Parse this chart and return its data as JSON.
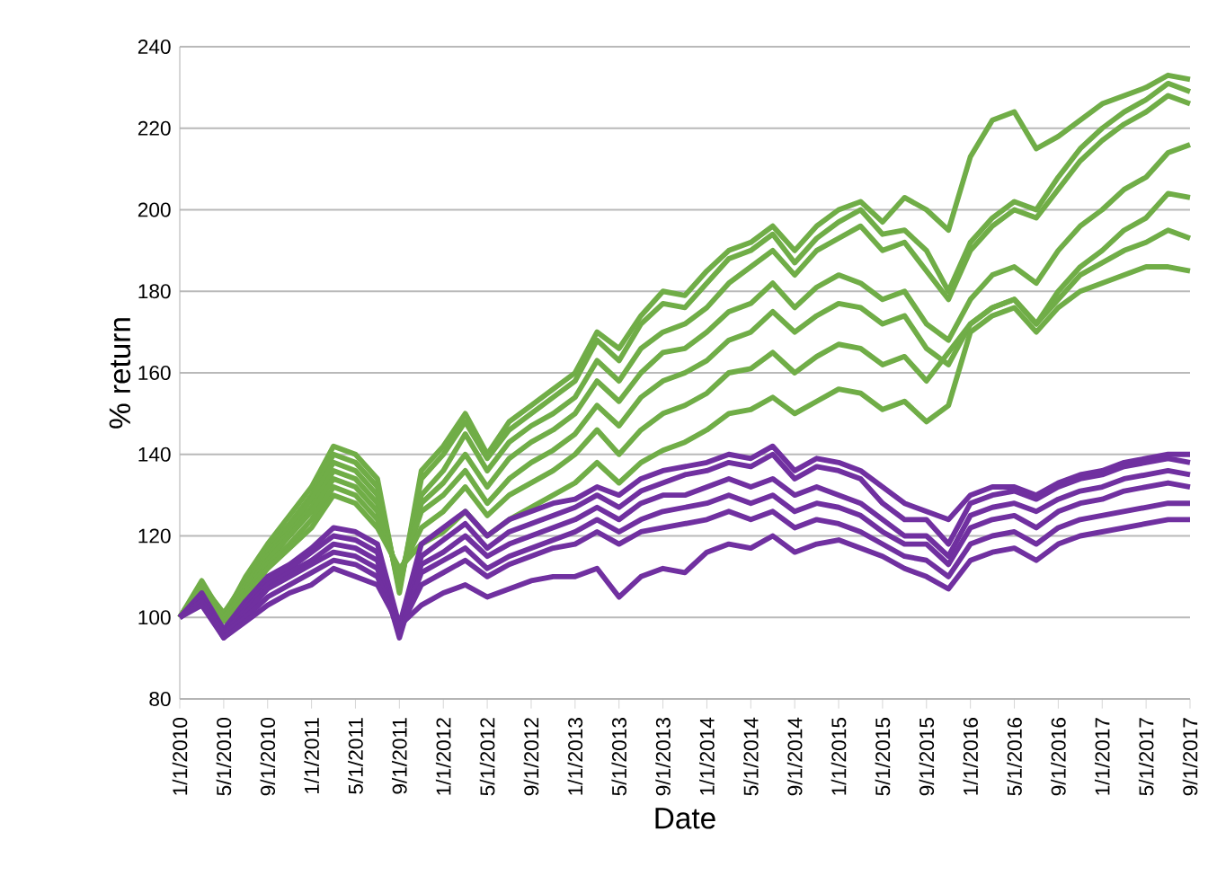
{
  "chart_data": {
    "type": "line",
    "xlabel": "Date",
    "ylabel": "% return",
    "x": [
      "2010-01",
      "2010-03",
      "2010-05",
      "2010-07",
      "2010-09",
      "2010-11",
      "2011-01",
      "2011-03",
      "2011-05",
      "2011-07",
      "2011-09",
      "2011-11",
      "2012-01",
      "2012-03",
      "2012-05",
      "2012-07",
      "2012-09",
      "2012-11",
      "2013-01",
      "2013-03",
      "2013-05",
      "2013-07",
      "2013-09",
      "2013-11",
      "2014-01",
      "2014-03",
      "2014-05",
      "2014-07",
      "2014-09",
      "2014-11",
      "2015-01",
      "2015-03",
      "2015-05",
      "2015-07",
      "2015-09",
      "2015-11",
      "2016-01",
      "2016-03",
      "2016-05",
      "2016-07",
      "2016-09",
      "2016-11",
      "2017-01",
      "2017-03",
      "2017-05",
      "2017-07",
      "2017-09"
    ],
    "xlim": [
      "2010-01",
      "2017-09"
    ],
    "xticks": [
      {
        "value": "2010-01",
        "label": "1/1/2010"
      },
      {
        "value": "2010-05",
        "label": "5/1/2010"
      },
      {
        "value": "2010-09",
        "label": "9/1/2010"
      },
      {
        "value": "2011-01",
        "label": "1/1/2011"
      },
      {
        "value": "2011-05",
        "label": "5/1/2011"
      },
      {
        "value": "2011-09",
        "label": "9/1/2011"
      },
      {
        "value": "2012-01",
        "label": "1/1/2012"
      },
      {
        "value": "2012-05",
        "label": "5/1/2012"
      },
      {
        "value": "2012-09",
        "label": "9/1/2012"
      },
      {
        "value": "2013-01",
        "label": "1/1/2013"
      },
      {
        "value": "2013-05",
        "label": "5/1/2013"
      },
      {
        "value": "2013-09",
        "label": "9/1/2013"
      },
      {
        "value": "2014-01",
        "label": "1/1/2014"
      },
      {
        "value": "2014-05",
        "label": "5/1/2014"
      },
      {
        "value": "2014-09",
        "label": "9/1/2014"
      },
      {
        "value": "2015-01",
        "label": "1/1/2015"
      },
      {
        "value": "2015-05",
        "label": "5/1/2015"
      },
      {
        "value": "2015-09",
        "label": "9/1/2015"
      },
      {
        "value": "2016-01",
        "label": "1/1/2016"
      },
      {
        "value": "2016-05",
        "label": "5/1/2016"
      },
      {
        "value": "2016-09",
        "label": "9/1/2016"
      },
      {
        "value": "2017-01",
        "label": "1/1/2017"
      },
      {
        "value": "2017-05",
        "label": "5/1/2017"
      },
      {
        "value": "2017-09",
        "label": "9/1/2017"
      }
    ],
    "ylim": [
      80,
      240
    ],
    "yticks": [
      80,
      100,
      120,
      140,
      160,
      180,
      200,
      220,
      240
    ],
    "grid": "y",
    "marker": "none",
    "series": [
      {
        "color": "#70ad47",
        "values": [
          100,
          109,
          100,
          110,
          118,
          125,
          132,
          142,
          140,
          134,
          106,
          136,
          142,
          150,
          140,
          148,
          152,
          156,
          160,
          170,
          166,
          174,
          180,
          179,
          185,
          190,
          192,
          196,
          190,
          196,
          200,
          202,
          197,
          203,
          200,
          195,
          213,
          222,
          224,
          215,
          218,
          222,
          226,
          228,
          230,
          233,
          232
        ]
      },
      {
        "color": "#70ad47",
        "values": [
          100,
          108,
          101,
          109,
          117,
          123,
          130,
          140,
          138,
          132,
          107,
          134,
          140,
          148,
          139,
          146,
          150,
          154,
          158,
          168,
          163,
          172,
          177,
          176,
          182,
          188,
          190,
          194,
          187,
          193,
          197,
          200,
          194,
          195,
          190,
          180,
          192,
          198,
          202,
          200,
          208,
          215,
          220,
          224,
          227,
          231,
          229
        ]
      },
      {
        "color": "#70ad47",
        "values": [
          100,
          108,
          100,
          108,
          116,
          122,
          129,
          138,
          136,
          130,
          108,
          130,
          136,
          145,
          136,
          143,
          147,
          150,
          154,
          163,
          158,
          166,
          170,
          172,
          176,
          182,
          186,
          190,
          184,
          190,
          193,
          196,
          190,
          192,
          185,
          178,
          190,
          196,
          200,
          198,
          205,
          212,
          217,
          221,
          224,
          228,
          226
        ]
      },
      {
        "color": "#70ad47",
        "values": [
          100,
          108,
          101,
          108,
          115,
          121,
          127,
          136,
          134,
          128,
          109,
          128,
          133,
          140,
          132,
          139,
          143,
          146,
          150,
          158,
          153,
          160,
          165,
          166,
          170,
          175,
          177,
          182,
          176,
          181,
          184,
          182,
          178,
          180,
          172,
          168,
          178,
          184,
          186,
          182,
          190,
          196,
          200,
          205,
          208,
          214,
          216
        ]
      },
      {
        "color": "#70ad47",
        "values": [
          100,
          107,
          100,
          107,
          114,
          120,
          126,
          134,
          132,
          126,
          110,
          126,
          130,
          136,
          128,
          134,
          138,
          141,
          145,
          152,
          147,
          154,
          158,
          160,
          163,
          168,
          170,
          175,
          170,
          174,
          177,
          176,
          172,
          174,
          166,
          162,
          172,
          176,
          178,
          172,
          180,
          186,
          190,
          195,
          198,
          204,
          203
        ]
      },
      {
        "color": "#70ad47",
        "values": [
          100,
          107,
          100,
          106,
          113,
          118,
          124,
          132,
          130,
          124,
          111,
          122,
          126,
          132,
          125,
          130,
          133,
          136,
          140,
          146,
          140,
          146,
          150,
          152,
          155,
          160,
          161,
          165,
          160,
          164,
          167,
          166,
          162,
          164,
          158,
          165,
          172,
          176,
          178,
          172,
          178,
          184,
          187,
          190,
          192,
          195,
          193
        ]
      },
      {
        "color": "#70ad47",
        "values": [
          100,
          106,
          99,
          105,
          112,
          117,
          122,
          130,
          128,
          122,
          112,
          118,
          121,
          126,
          120,
          124,
          127,
          130,
          133,
          138,
          133,
          138,
          141,
          143,
          146,
          150,
          151,
          154,
          150,
          153,
          156,
          155,
          151,
          153,
          148,
          152,
          170,
          174,
          176,
          170,
          176,
          180,
          182,
          184,
          186,
          186,
          185
        ]
      },
      {
        "color": "#7030a0",
        "values": [
          100,
          106,
          97,
          104,
          110,
          113,
          117,
          122,
          121,
          118,
          98,
          118,
          122,
          126,
          120,
          124,
          126,
          128,
          129,
          132,
          130,
          134,
          136,
          137,
          138,
          140,
          139,
          142,
          136,
          139,
          138,
          136,
          132,
          128,
          126,
          124,
          130,
          132,
          132,
          130,
          133,
          135,
          136,
          138,
          139,
          140,
          140
        ]
      },
      {
        "color": "#7030a0",
        "values": [
          100,
          105,
          96,
          103,
          109,
          112,
          116,
          120,
          119,
          116,
          96,
          115,
          119,
          123,
          117,
          121,
          123,
          125,
          127,
          130,
          127,
          131,
          133,
          135,
          136,
          138,
          137,
          140,
          134,
          137,
          136,
          134,
          128,
          124,
          124,
          118,
          128,
          130,
          131,
          129,
          132,
          134,
          135,
          137,
          138,
          139,
          138
        ]
      },
      {
        "color": "#7030a0",
        "values": [
          100,
          105,
          96,
          102,
          108,
          111,
          114,
          118,
          117,
          114,
          95,
          113,
          116,
          120,
          115,
          118,
          120,
          122,
          124,
          127,
          124,
          128,
          130,
          130,
          132,
          134,
          132,
          134,
          130,
          132,
          130,
          128,
          124,
          120,
          120,
          115,
          125,
          127,
          128,
          126,
          129,
          131,
          132,
          134,
          135,
          136,
          135
        ]
      },
      {
        "color": "#7030a0",
        "values": [
          100,
          104,
          95,
          101,
          107,
          110,
          113,
          116,
          115,
          112,
          96,
          111,
          114,
          117,
          112,
          115,
          117,
          119,
          121,
          124,
          121,
          124,
          126,
          127,
          128,
          130,
          128,
          130,
          126,
          128,
          127,
          125,
          121,
          118,
          118,
          113,
          122,
          124,
          125,
          122,
          126,
          128,
          129,
          131,
          132,
          133,
          132
        ]
      },
      {
        "color": "#7030a0",
        "values": [
          100,
          104,
          96,
          100,
          105,
          108,
          111,
          114,
          113,
          110,
          97,
          108,
          111,
          114,
          110,
          113,
          115,
          117,
          118,
          121,
          118,
          121,
          122,
          123,
          124,
          126,
          124,
          126,
          122,
          124,
          123,
          121,
          118,
          115,
          114,
          110,
          118,
          120,
          121,
          118,
          122,
          124,
          125,
          126,
          127,
          128,
          128
        ]
      },
      {
        "color": "#7030a0",
        "values": [
          100,
          103,
          95,
          99,
          103,
          106,
          108,
          112,
          110,
          108,
          98,
          103,
          106,
          108,
          105,
          107,
          109,
          110,
          110,
          112,
          105,
          110,
          112,
          111,
          116,
          118,
          117,
          120,
          116,
          118,
          119,
          117,
          115,
          112,
          110,
          107,
          114,
          116,
          117,
          114,
          118,
          120,
          121,
          122,
          123,
          124,
          124
        ]
      }
    ]
  }
}
